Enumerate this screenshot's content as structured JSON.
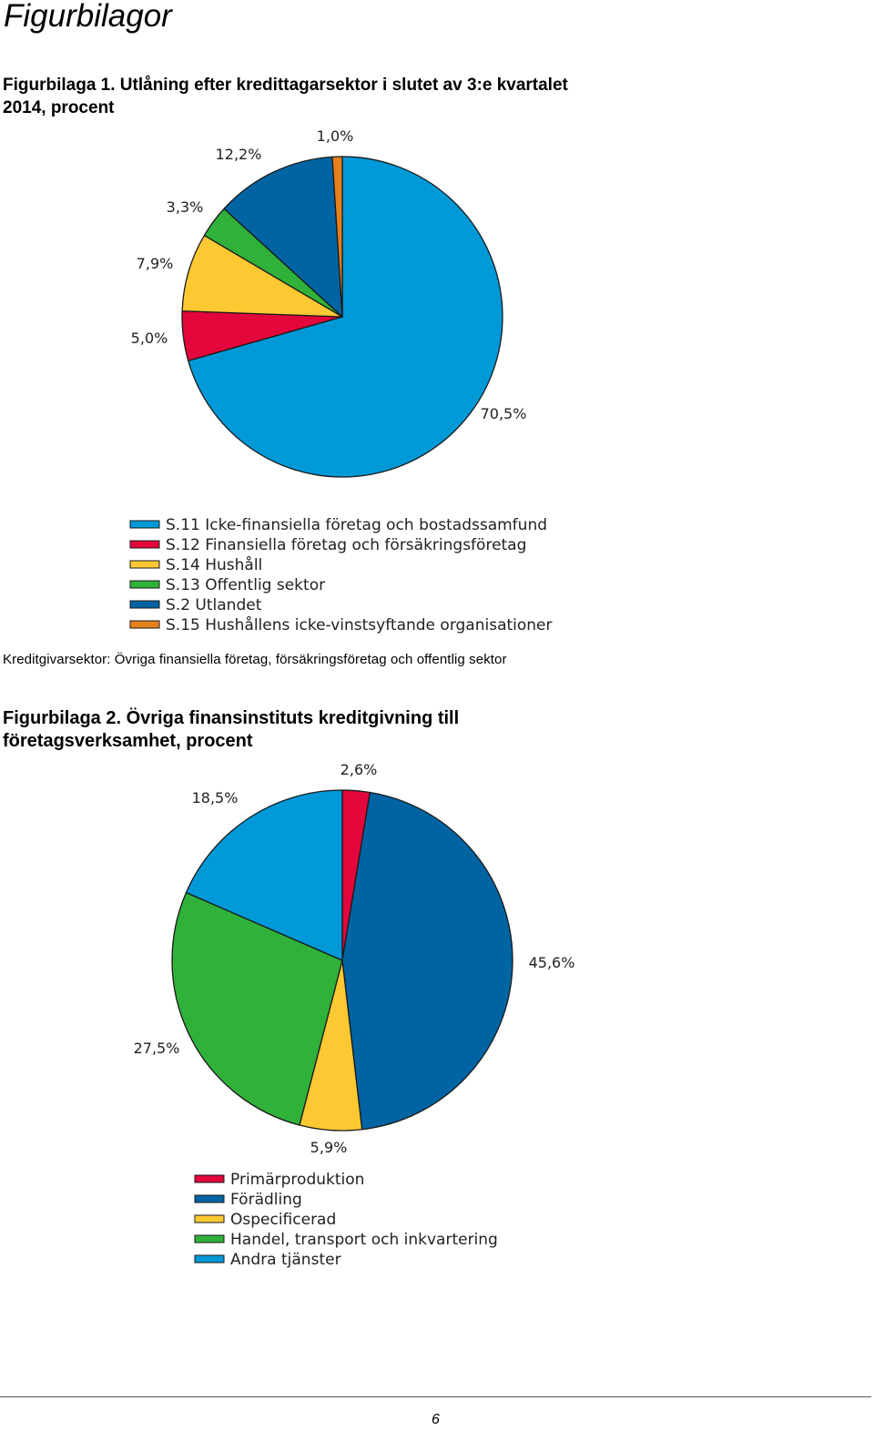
{
  "page": {
    "heading": "Figurbilagor",
    "page_number": "6"
  },
  "figure1": {
    "title_line1": "Figurbilaga 1. Utlåning efter kredittagarsektor i slutet av 3:e kvartalet",
    "title_line2": "2014, procent",
    "note": "Kreditgivarsektor: Övriga finansiella företag, försäkringsföretag och offentlig sektor"
  },
  "figure2": {
    "title_line1": "Figurbilaga 2. Övriga finansinstituts kreditgivning till",
    "title_line2": "företagsverksamhet, procent"
  },
  "chart_data": [
    {
      "type": "pie",
      "title": "Figurbilaga 1. Utlåning efter kredittagarsektor i slutet av 3:e kvartalet 2014, procent",
      "legend_position": "bottom",
      "slices": [
        {
          "legend": "S.11 Icke-finansiella företag och bostadssamfund",
          "value": 70.5,
          "label": "70,5%",
          "color": "#0099D8"
        },
        {
          "legend": "S.12 Finansiella företag och försäkringsföretag",
          "value": 5.0,
          "label": "5,0%",
          "color": "#E2063B"
        },
        {
          "legend": "S.14 Hushåll",
          "value": 7.9,
          "label": "7,9%",
          "color": "#FDC933"
        },
        {
          "legend": "S.13 Offentlig sektor",
          "value": 3.3,
          "label": "3,3%",
          "color": "#2FB13A"
        },
        {
          "legend": "S.2 Utlandet",
          "value": 12.2,
          "label": "12,2%",
          "color": "#0064A3"
        },
        {
          "legend": "S.15 Hushållens icke-vinstsyftande organisationer",
          "value": 1.0,
          "label": "1,0%",
          "color": "#E5801C"
        }
      ]
    },
    {
      "type": "pie",
      "title": "Figurbilaga 2. Övriga finansinstituts kreditgivning till företagsverksamhet, procent",
      "legend_position": "bottom",
      "slices": [
        {
          "legend": "Primärproduktion",
          "value": 2.6,
          "label": "2,6%",
          "color": "#E2063B"
        },
        {
          "legend": "Förädling",
          "value": 45.6,
          "label": "45,6%",
          "color": "#0064A3"
        },
        {
          "legend": "Ospecificerad",
          "value": 5.9,
          "label": "5,9%",
          "color": "#FDC933"
        },
        {
          "legend": "Handel, transport och inkvartering",
          "value": 27.5,
          "label": "27,5%",
          "color": "#2FB13A"
        },
        {
          "legend": "Andra tjänster",
          "value": 18.5,
          "label": "18,5%",
          "color": "#0099D8"
        }
      ]
    }
  ]
}
